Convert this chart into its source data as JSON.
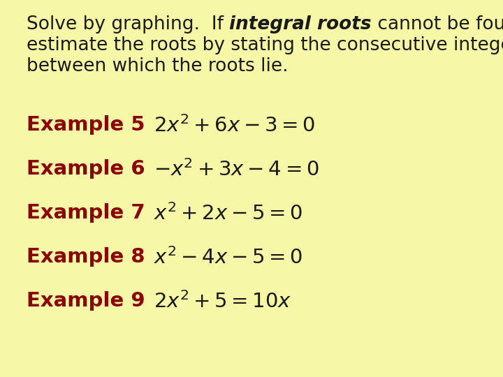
{
  "background_color": "#f7f7a8",
  "text_color": "#1a1a1a",
  "example_label_color": "#8b0000",
  "equation_color": "#1a1a1a",
  "header_lines": [
    [
      "normal",
      "Solve by graphing.  If "
    ],
    [
      "bold",
      "integral roots"
    ],
    [
      "normal",
      " cannot be found,"
    ]
  ],
  "header_line2": "estimate the roots by stating the consecutive integers",
  "header_line3": "between which the roots lie.",
  "examples": [
    {
      "label": "Example 5",
      "eq": "$2x^2+6x-3=0$"
    },
    {
      "label": "Example 6",
      "eq": "$-x^2+3x-4=0$"
    },
    {
      "label": "Example 7",
      "eq": "$x^2+2x-5=0$"
    },
    {
      "label": "Example 8",
      "eq": "$x^2-4x-5=0$"
    },
    {
      "label": "Example 9",
      "eq": "$2x^2+5=10x$"
    }
  ],
  "header_fontsize": 19,
  "label_fontsize": 21,
  "eq_fontsize": 21,
  "figsize": [
    7.2,
    5.4
  ],
  "dpi": 100
}
